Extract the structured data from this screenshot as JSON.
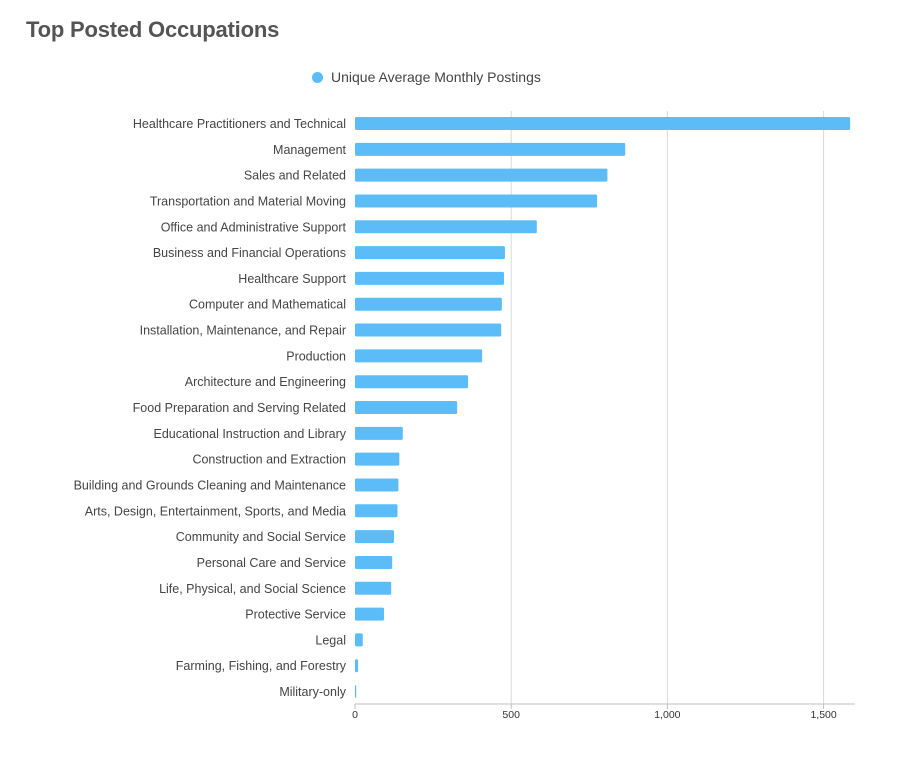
{
  "title": "Top Posted Occupations",
  "colors": {
    "bar": "#5bbcf8",
    "grid": "#d9d9d9",
    "axis": "#bfbfbf",
    "label": "#444444",
    "title": "#545454"
  },
  "chart_data": {
    "type": "bar",
    "orientation": "horizontal",
    "legend_position": "top-center",
    "grid": true,
    "xlim": [
      0,
      1600
    ],
    "ticks": [
      0,
      500,
      1000,
      1500
    ],
    "tick_labels": [
      "0",
      "500",
      "1,000",
      "1,500"
    ],
    "categories": [
      "Healthcare Practitioners and Technical",
      "Management",
      "Sales and Related",
      "Transportation and Material Moving",
      "Office and Administrative Support",
      "Business and Financial Operations",
      "Healthcare Support",
      "Computer and Mathematical",
      "Installation, Maintenance, and Repair",
      "Production",
      "Architecture and Engineering",
      "Food Preparation and Serving Related",
      "Educational Instruction and Library",
      "Construction and Extraction",
      "Building and Grounds Cleaning and Maintenance",
      "Arts, Design, Entertainment, Sports, and Media",
      "Community and Social Service",
      "Personal Care and Service",
      "Life, Physical, and Social Science",
      "Protective Service",
      "Legal",
      "Farming, Fishing, and Forestry",
      "Military-only"
    ],
    "series": [
      {
        "name": "Unique Average Monthly Postings",
        "values": [
          1585,
          865,
          808,
          775,
          582,
          480,
          477,
          470,
          468,
          407,
          362,
          327,
          153,
          142,
          139,
          136,
          125,
          119,
          116,
          93,
          25,
          10,
          2
        ]
      }
    ]
  }
}
